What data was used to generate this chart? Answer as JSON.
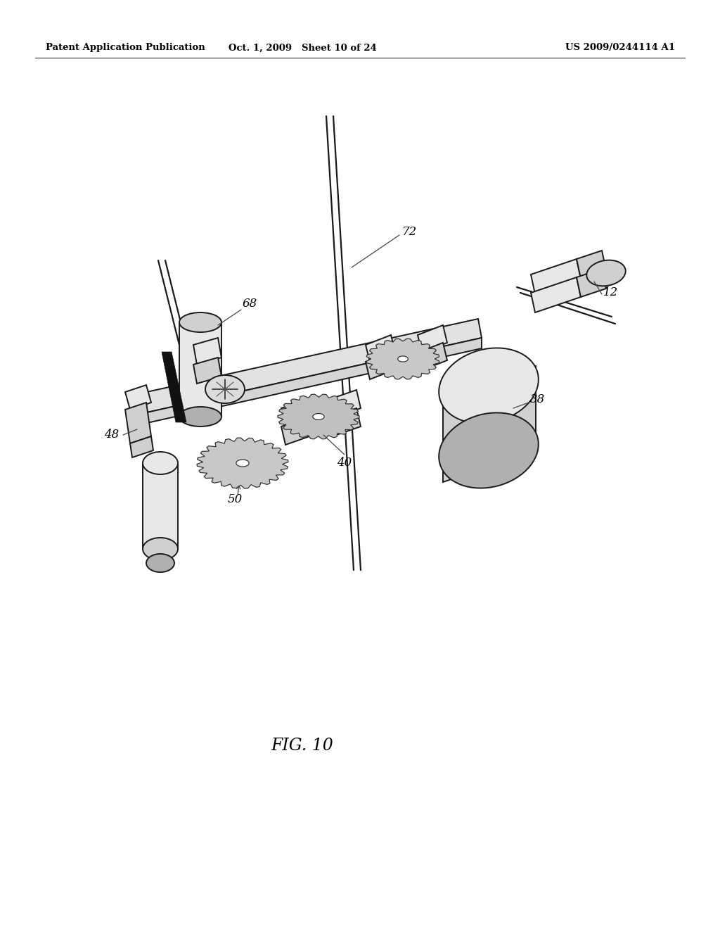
{
  "background_color": "#ffffff",
  "header_left": "Patent Application Publication",
  "header_mid": "Oct. 1, 2009   Sheet 10 of 24",
  "header_right": "US 2009/0244114 A1",
  "figure_label": "FIG. 10",
  "line_color": "#1a1a1a",
  "lw_main": 1.4,
  "lw_thin": 0.9,
  "gray_light": "#e8e8e8",
  "gray_mid": "#d0d0d0",
  "gray_dark": "#b0b0b0",
  "gear_gray": "#c0c0c0",
  "label_fontsize": 12,
  "header_fontsize": 9.5,
  "fig_label_fontsize": 17
}
